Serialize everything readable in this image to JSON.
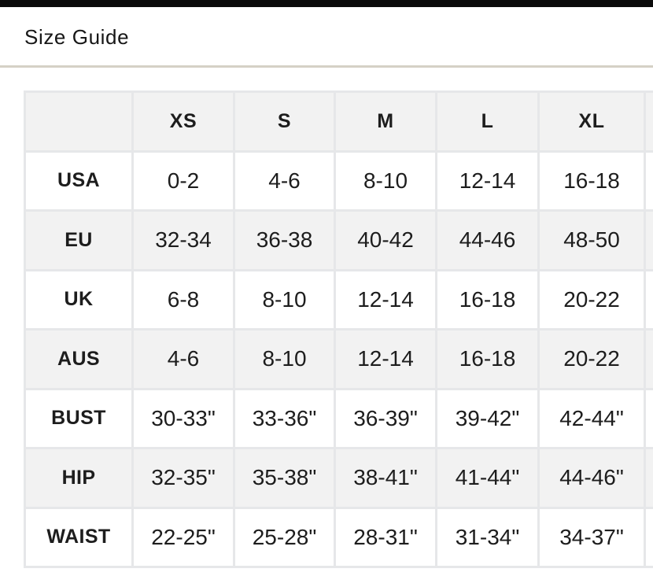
{
  "page": {
    "title": "Size Guide"
  },
  "colors": {
    "top_bar": "#0b0b0b",
    "title_text": "#171717",
    "divider": "#d5d1c6",
    "cell_text": "#1d1d1d",
    "shaded_bg": "#f2f2f2",
    "grid_line": "#e6e7e9"
  },
  "size_table": {
    "corner_label": "",
    "columns": [
      "XS",
      "S",
      "M",
      "L",
      "XL"
    ],
    "rows": [
      {
        "label": "USA",
        "values": [
          "0-2",
          "4-6",
          "8-10",
          "12-14",
          "16-18"
        ]
      },
      {
        "label": "EU",
        "values": [
          "32-34",
          "36-38",
          "40-42",
          "44-46",
          "48-50"
        ]
      },
      {
        "label": "UK",
        "values": [
          "6-8",
          "8-10",
          "12-14",
          "16-18",
          "20-22"
        ]
      },
      {
        "label": "AUS",
        "values": [
          "4-6",
          "8-10",
          "12-14",
          "16-18",
          "20-22"
        ]
      },
      {
        "label": "BUST",
        "values": [
          "30-33\"",
          "33-36\"",
          "36-39\"",
          "39-42\"",
          "42-44\""
        ]
      },
      {
        "label": "HIP",
        "values": [
          "32-35\"",
          "35-38\"",
          "38-41\"",
          "41-44\"",
          "44-46\""
        ]
      },
      {
        "label": "WAIST",
        "values": [
          "22-25\"",
          "25-28\"",
          "28-31\"",
          "31-34\"",
          "34-37\""
        ]
      }
    ]
  }
}
